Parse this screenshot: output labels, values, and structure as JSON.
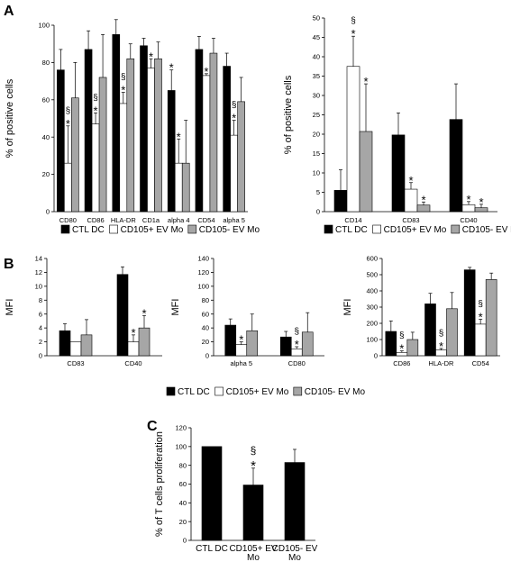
{
  "panels": [
    "A",
    "B",
    "C"
  ],
  "series_names": [
    "CTL DC",
    "CD105+ EV Mo",
    "CD105- EV Mo"
  ],
  "colors": {
    "ctl": "#000000",
    "cd105pos": "#ffffff",
    "cd105neg": "#a6a6a6",
    "axis": "#000000"
  },
  "chart_data": [
    {
      "type": "bar",
      "panel": "A",
      "ylabel": "% of positive cells",
      "ylim": [
        0,
        100
      ],
      "yticks": [
        0,
        20,
        40,
        60,
        80,
        100
      ],
      "categories": [
        "CD80",
        "CD86",
        "HLA-DR",
        "CD1a",
        "alpha 4",
        "CD54",
        "alpha 5"
      ],
      "series": [
        {
          "name": "CTL DC",
          "values": [
            76,
            87,
            95,
            89,
            65,
            87,
            78
          ],
          "errors": [
            11,
            10,
            8,
            4,
            11,
            7,
            7
          ]
        },
        {
          "name": "CD105+ EV Mo",
          "values": [
            26,
            47,
            58,
            77,
            26,
            73,
            41
          ],
          "errors": [
            20,
            6,
            6,
            5,
            13,
            1,
            8
          ]
        },
        {
          "name": "CD105- EV Mo",
          "values": [
            61,
            72,
            82,
            82,
            26,
            85,
            59
          ],
          "errors": [
            19,
            23,
            8,
            9,
            23,
            8,
            13
          ]
        }
      ],
      "annotations": [
        {
          "category": 0,
          "series": 1,
          "text": "*§"
        },
        {
          "category": 1,
          "series": 1,
          "text": "*§"
        },
        {
          "category": 2,
          "series": 1,
          "text": "*§"
        },
        {
          "category": 3,
          "series": 1,
          "text": "*"
        },
        {
          "category": 4,
          "series": 0,
          "text": "*"
        },
        {
          "category": 4,
          "series": 1,
          "text": "*"
        },
        {
          "category": 5,
          "series": 1,
          "text": "*"
        },
        {
          "category": 6,
          "series": 1,
          "text": "*§"
        }
      ]
    },
    {
      "type": "bar",
      "panel": "A",
      "ylabel": "% of positive cells",
      "ylim": [
        0,
        50
      ],
      "yticks": [
        0,
        5,
        10,
        15,
        20,
        25,
        30,
        35,
        40,
        45,
        50
      ],
      "categories": [
        "CD14",
        "CD83",
        "CD40"
      ],
      "series": [
        {
          "name": "CTL DC",
          "values": [
            5.5,
            19.8,
            23.8
          ],
          "errors": [
            5.3,
            5.7,
            9.2
          ]
        },
        {
          "name": "CD105+ EV Mo",
          "values": [
            37.5,
            5.8,
            1.8
          ],
          "errors": [
            7.8,
            1.7,
            0.8
          ]
        },
        {
          "name": "CD105- EV Mo",
          "values": [
            20.7,
            1.7,
            1
          ],
          "errors": [
            12.3,
            0.8,
            0.9
          ]
        }
      ],
      "annotations": [
        {
          "category": 0,
          "series": 1,
          "text": "*§"
        },
        {
          "category": 0,
          "series": 2,
          "text": "*"
        },
        {
          "category": 1,
          "series": 1,
          "text": "*"
        },
        {
          "category": 1,
          "series": 2,
          "text": "*"
        },
        {
          "category": 2,
          "series": 1,
          "text": "*"
        },
        {
          "category": 2,
          "series": 2,
          "text": "*"
        }
      ]
    },
    {
      "type": "bar",
      "panel": "B",
      "ylabel": "MFI",
      "ylim": [
        0,
        14
      ],
      "yticks": [
        0,
        2,
        4,
        6,
        8,
        10,
        12,
        14
      ],
      "categories": [
        "CD83",
        "CD40"
      ],
      "series": [
        {
          "name": "CTL DC",
          "values": [
            3.6,
            11.7
          ],
          "errors": [
            1,
            1.1
          ]
        },
        {
          "name": "CD105+ EV Mo",
          "values": [
            2,
            2
          ],
          "errors": [
            0,
            1
          ]
        },
        {
          "name": "CD105- EV Mo",
          "values": [
            3,
            4
          ],
          "errors": [
            2.2,
            1.8
          ]
        }
      ],
      "annotations": [
        {
          "category": 1,
          "series": 1,
          "text": "*"
        },
        {
          "category": 1,
          "series": 2,
          "text": "*"
        }
      ]
    },
    {
      "type": "bar",
      "panel": "B",
      "ylabel": "MFI",
      "ylim": [
        0,
        140
      ],
      "yticks": [
        0,
        20,
        40,
        60,
        80,
        100,
        120,
        140
      ],
      "categories": [
        "alpha 5",
        "CD80"
      ],
      "series": [
        {
          "name": "CTL DC",
          "values": [
            44,
            27
          ],
          "errors": [
            9,
            8
          ]
        },
        {
          "name": "CD105+ EV Mo",
          "values": [
            16,
            10
          ],
          "errors": [
            4,
            3
          ]
        },
        {
          "name": "CD105- EV Mo",
          "values": [
            36,
            34
          ],
          "errors": [
            24,
            28
          ]
        }
      ],
      "annotations": [
        {
          "category": 0,
          "series": 1,
          "text": "*"
        },
        {
          "category": 1,
          "series": 1,
          "text": "*§"
        }
      ]
    },
    {
      "type": "bar",
      "panel": "B",
      "ylabel": "MFI",
      "ylim": [
        0,
        600
      ],
      "yticks": [
        0,
        100,
        200,
        300,
        400,
        500,
        600
      ],
      "categories": [
        "CD86",
        "HLA-DR",
        "CD54"
      ],
      "series": [
        {
          "name": "CTL DC",
          "values": [
            150,
            320,
            530
          ],
          "errors": [
            65,
            65,
            15
          ]
        },
        {
          "name": "CD105+ EV Mo",
          "values": [
            20,
            35,
            195
          ],
          "errors": [
            10,
            10,
            30
          ]
        },
        {
          "name": "CD105- EV Mo",
          "values": [
            100,
            290,
            470
          ],
          "errors": [
            45,
            100,
            40
          ]
        }
      ],
      "annotations": [
        {
          "category": 0,
          "series": 1,
          "text": "*§"
        },
        {
          "category": 1,
          "series": 1,
          "text": "*§"
        },
        {
          "category": 2,
          "series": 1,
          "text": "*§"
        }
      ]
    },
    {
      "type": "bar",
      "panel": "C",
      "ylabel": "% of T cells proliferation",
      "ylim": [
        0,
        120
      ],
      "yticks": [
        0,
        20,
        40,
        60,
        80,
        100,
        120
      ],
      "categories": [
        [
          "CTL DC"
        ],
        [
          "CD105+ EV",
          "Mo"
        ],
        [
          "CD105- EV",
          "Mo"
        ]
      ],
      "series": [
        {
          "name": "",
          "values": [
            100,
            59,
            83
          ],
          "errors": [
            0,
            18,
            14
          ]
        }
      ],
      "annotations": [
        {
          "category": 1,
          "series": 0,
          "text": "*§"
        }
      ]
    }
  ]
}
